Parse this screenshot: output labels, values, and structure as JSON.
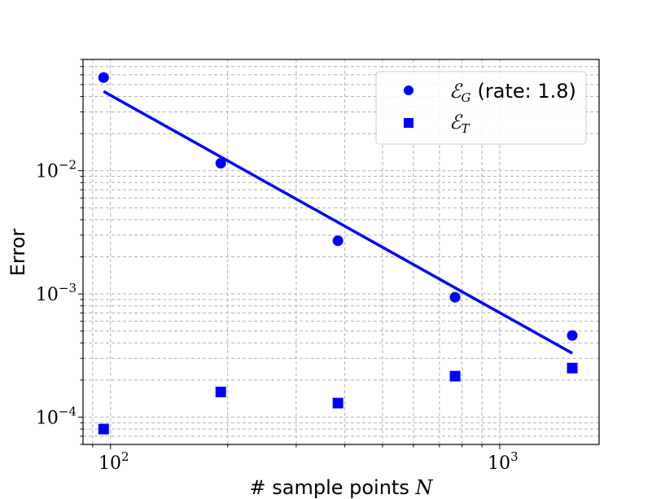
{
  "chart_data": {
    "type": "scatter",
    "xscale": "log",
    "yscale": "log",
    "xlim": [
      85,
      1800
    ],
    "ylim": [
      6e-05,
      0.08
    ],
    "xlabel": "# sample points",
    "xlabel_math": "N",
    "ylabel": "Error",
    "x_ticks": [
      {
        "value": 100,
        "base": "10",
        "exp": "2"
      },
      {
        "value": 1000,
        "base": "10",
        "exp": "3"
      }
    ],
    "y_ticks": [
      {
        "value": 0.0001,
        "base": "10",
        "exp": "−4"
      },
      {
        "value": 0.001,
        "base": "10",
        "exp": "−3"
      },
      {
        "value": 0.01,
        "base": "10",
        "exp": "−2"
      }
    ],
    "grid": true,
    "legend_position": "top-right",
    "color": "#0000ff",
    "series": [
      {
        "name": "ℰ",
        "name_sub": "G",
        "name_suffix": "(rate: 1.8)",
        "marker": "circle",
        "x": [
          96,
          192,
          384,
          768,
          1536
        ],
        "y": [
          0.057,
          0.0115,
          0.0027,
          0.00094,
          0.00046
        ]
      },
      {
        "name": "ℰ",
        "name_sub": "T",
        "marker": "square",
        "x": [
          96,
          192,
          384,
          768,
          1536
        ],
        "y": [
          8e-05,
          0.00016,
          0.00013,
          0.000215,
          0.00025
        ]
      }
    ],
    "fit_line": {
      "series": 0,
      "x": [
        96,
        1536
      ],
      "y": [
        0.044,
        0.00033
      ]
    }
  }
}
